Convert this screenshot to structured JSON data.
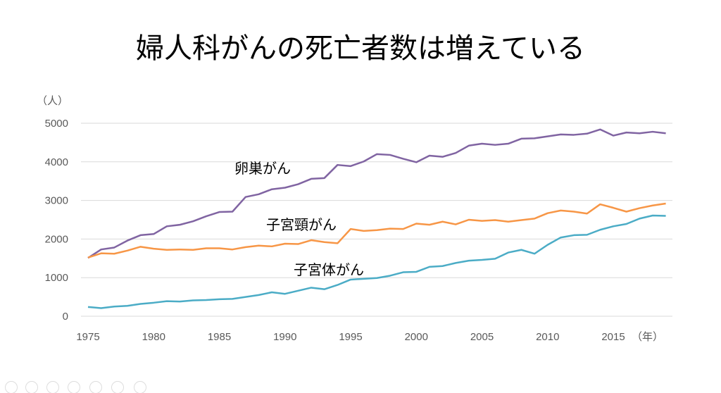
{
  "title": "婦人科がんの死亡者数は増えている",
  "chart_data": {
    "type": "line",
    "title": "婦人科がんの死亡者数は増えている",
    "ylabel": "（人）",
    "xlabel": "（年）",
    "ylim": [
      0,
      5000
    ],
    "yticks": [
      0,
      1000,
      2000,
      3000,
      4000,
      5000
    ],
    "xticks": [
      1975,
      1980,
      1985,
      1990,
      1995,
      2000,
      2005,
      2010,
      2015
    ],
    "grid": true,
    "x": [
      1975,
      1976,
      1977,
      1978,
      1979,
      1980,
      1981,
      1982,
      1983,
      1984,
      1985,
      1986,
      1987,
      1988,
      1989,
      1990,
      1991,
      1992,
      1993,
      1994,
      1995,
      1996,
      1997,
      1998,
      1999,
      2000,
      2001,
      2002,
      2003,
      2004,
      2005,
      2006,
      2007,
      2008,
      2009,
      2010,
      2011,
      2012,
      2013,
      2014,
      2015,
      2016,
      2017,
      2018,
      2019
    ],
    "series": [
      {
        "name": "卵巣がん",
        "color": "#8064a2",
        "values": [
          1510,
          1730,
          1780,
          1960,
          2100,
          2130,
          2330,
          2370,
          2460,
          2590,
          2700,
          2710,
          3090,
          3160,
          3290,
          3330,
          3420,
          3560,
          3580,
          3920,
          3890,
          4010,
          4200,
          4180,
          4080,
          3990,
          4160,
          4130,
          4230,
          4420,
          4470,
          4440,
          4470,
          4600,
          4610,
          4660,
          4710,
          4700,
          4730,
          4840,
          4680,
          4760,
          4740,
          4780,
          4740
        ]
      },
      {
        "name": "子宮頸がん",
        "color": "#f79646",
        "values": [
          1520,
          1630,
          1620,
          1700,
          1800,
          1750,
          1720,
          1730,
          1720,
          1760,
          1760,
          1730,
          1790,
          1830,
          1810,
          1880,
          1870,
          1970,
          1920,
          1890,
          2260,
          2210,
          2230,
          2270,
          2260,
          2400,
          2370,
          2450,
          2380,
          2500,
          2470,
          2490,
          2450,
          2490,
          2530,
          2670,
          2740,
          2710,
          2660,
          2900,
          2810,
          2710,
          2800,
          2870,
          2920
        ]
      },
      {
        "name": "子宮体がん",
        "color": "#4bacc6",
        "values": [
          240,
          210,
          250,
          270,
          320,
          350,
          390,
          380,
          410,
          420,
          440,
          450,
          500,
          550,
          620,
          580,
          660,
          740,
          700,
          810,
          950,
          970,
          990,
          1050,
          1140,
          1150,
          1280,
          1300,
          1380,
          1440,
          1460,
          1490,
          1650,
          1720,
          1620,
          1850,
          2040,
          2100,
          2110,
          2240,
          2330,
          2390,
          2530,
          2610,
          2600
        ]
      }
    ]
  }
}
